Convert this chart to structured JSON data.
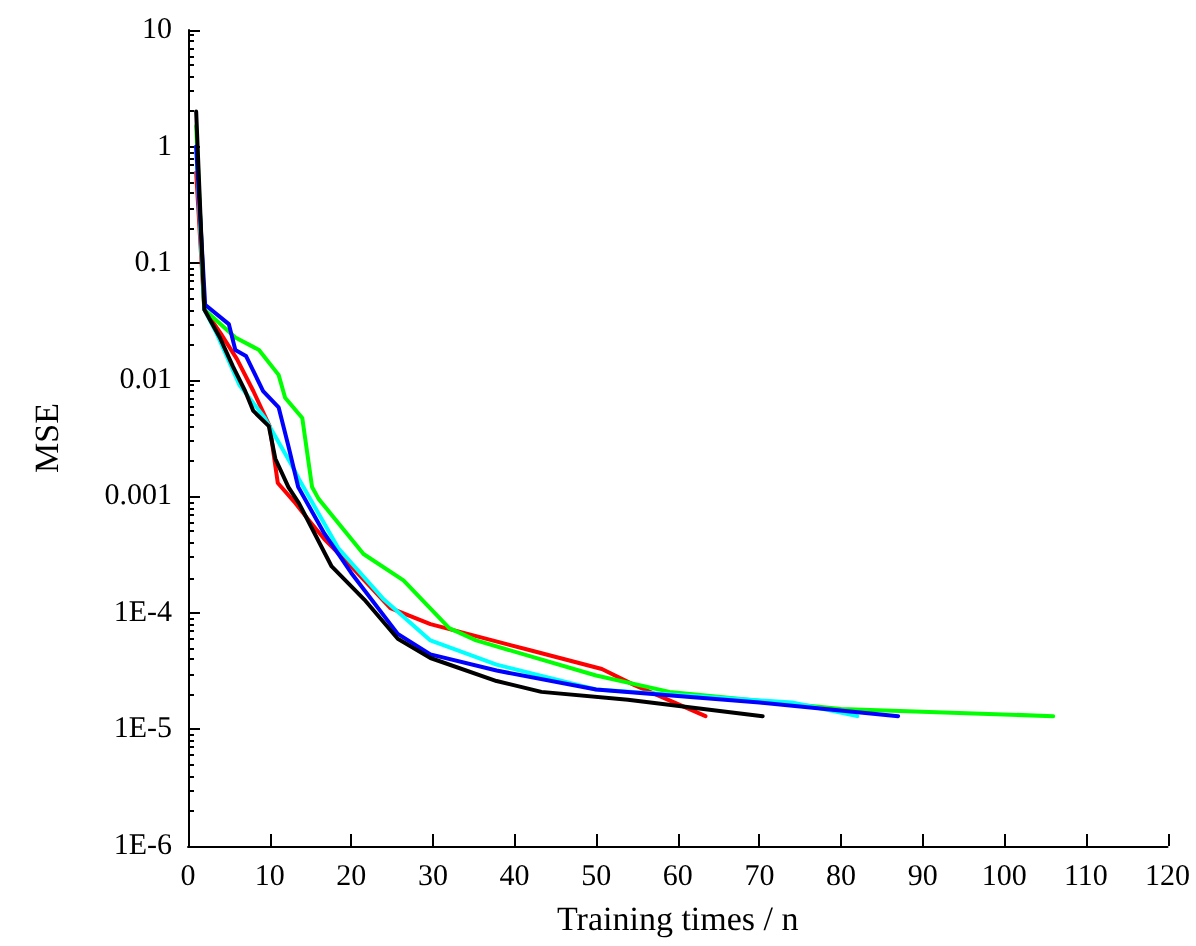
{
  "chart_data": {
    "type": "line",
    "xlabel": "Training times / n",
    "ylabel": "MSE",
    "log": "y",
    "grid": false,
    "marker": "none",
    "line_style": "solid",
    "xlim": [
      0,
      120
    ],
    "xticks": [
      0,
      10,
      20,
      30,
      40,
      50,
      60,
      70,
      80,
      90,
      100,
      110,
      120
    ],
    "ylim": [
      1e-06,
      10
    ],
    "yticks": [
      {
        "value": 1e-06,
        "label": "1E-6"
      },
      {
        "value": 1e-05,
        "label": "1E-5"
      },
      {
        "value": 0.0001,
        "label": "1E-4"
      },
      0.001,
      0.01,
      0.1,
      1,
      10
    ],
    "series": [
      {
        "color": "#ff0000",
        "x": [
          1,
          2,
          4,
          6,
          8,
          10,
          11,
          13,
          15,
          16.7,
          20,
          24.8,
          29.7,
          41.8,
          50.7,
          54.7,
          63.4
        ],
        "values": [
          0.6,
          0.04,
          0.025,
          0.015,
          0.008,
          0.004,
          0.0013,
          0.0009,
          0.0006,
          0.00043,
          0.00025,
          0.00011,
          8e-05,
          4.8e-05,
          3.3e-05,
          2.4e-05,
          1.3e-05
        ]
      },
      {
        "color": "#00ff00",
        "x": [
          1,
          2,
          5.8,
          8.7,
          11.1,
          11.9,
          14,
          15.2,
          16,
          21.5,
          26.4,
          32,
          35.3,
          50,
          59,
          80,
          106
        ],
        "values": [
          1.5,
          0.04,
          0.023,
          0.018,
          0.011,
          0.007,
          0.0047,
          0.0012,
          0.00095,
          0.00032,
          0.00019,
          7.4e-05,
          5.8e-05,
          2.9e-05,
          2.1e-05,
          1.5e-05,
          1.3e-05
        ]
      },
      {
        "color": "#00ffff",
        "x": [
          1,
          2,
          3.5,
          6.3,
          9.4,
          12.8,
          13.6,
          18.4,
          24,
          29.7,
          37.8,
          50,
          74,
          82
        ],
        "values": [
          1,
          0.04,
          0.025,
          0.009,
          0.0047,
          0.0018,
          0.0014,
          0.00036,
          0.00013,
          5.8e-05,
          3.6e-05,
          2.2e-05,
          1.7e-05,
          1.3e-05
        ]
      },
      {
        "color": "#0000ff",
        "x": [
          1,
          2.1,
          5,
          5.8,
          7.1,
          9.2,
          11.1,
          12.3,
          13.5,
          16.7,
          20,
          25.7,
          29.7,
          37.8,
          50,
          70,
          87
        ],
        "values": [
          1,
          0.044,
          0.03,
          0.018,
          0.016,
          0.008,
          0.0058,
          0.0027,
          0.0012,
          0.00048,
          0.00022,
          6.6e-05,
          4.4e-05,
          3.2e-05,
          2.2e-05,
          1.7e-05,
          1.3e-05
        ]
      },
      {
        "color": "#000000",
        "x": [
          1,
          2,
          3.9,
          5.5,
          7,
          8,
          9.9,
          10.7,
          12.3,
          13.6,
          17.6,
          21.6,
          25.7,
          29.7,
          37.8,
          43.3,
          53.9,
          70.4
        ],
        "values": [
          2,
          0.04,
          0.023,
          0.013,
          0.008,
          0.0054,
          0.004,
          0.0021,
          0.0012,
          0.00087,
          0.00025,
          0.00013,
          6e-05,
          4.1e-05,
          2.6e-05,
          2.1e-05,
          1.8e-05,
          1.3e-05
        ]
      }
    ]
  }
}
